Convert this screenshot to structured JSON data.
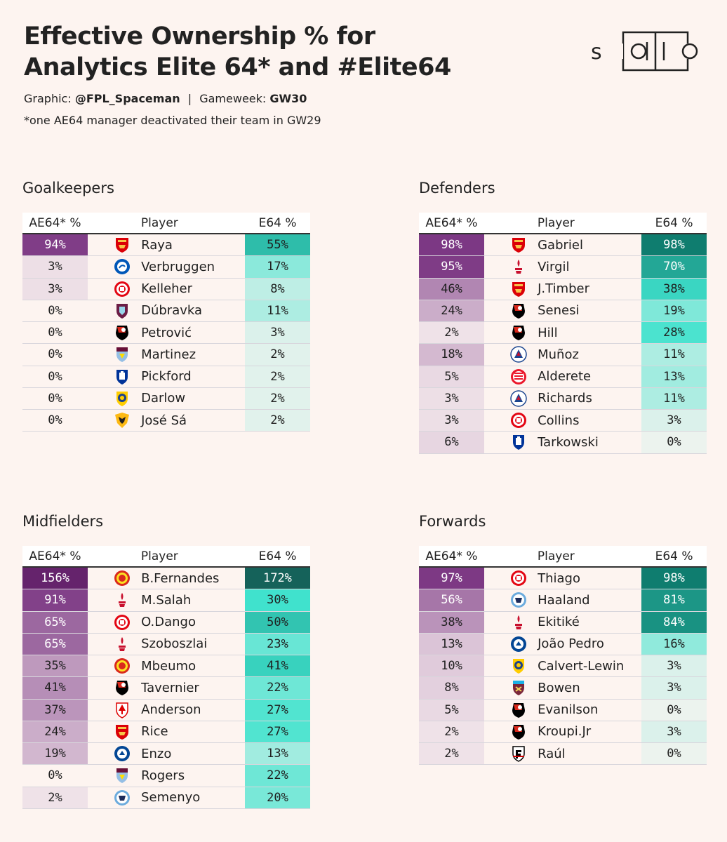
{
  "header": {
    "title_line1": "Effective Ownership % for",
    "title_line2": "Analytics Elite 64* and #Elite64",
    "graphic_label": "Graphic:",
    "graphic_author": "@FPL_Spaceman",
    "separator": "|",
    "gameweek_label": "Gameweek:",
    "gameweek_value": "GW30",
    "note": "*one AE64 manager deactivated their team in GW29",
    "logo_text": "solio"
  },
  "columns": {
    "ae64": "AE64* %",
    "player": "Player",
    "e64": "E64 %"
  },
  "colors": {
    "background": "#fdf4f0",
    "purple_max": "#6d2b78",
    "teal_max": "#0e7a6c"
  },
  "sections": {
    "goalkeepers": {
      "title": "Goalkeepers",
      "rows": [
        {
          "ae": "94%",
          "ae_v": 94,
          "player": "Raya",
          "e64": "55%",
          "e_v": 55,
          "club": "arsenal"
        },
        {
          "ae": "3%",
          "ae_v": 3,
          "player": "Verbruggen",
          "e64": "17%",
          "e_v": 17,
          "club": "brighton"
        },
        {
          "ae": "3%",
          "ae_v": 3,
          "player": "Kelleher",
          "e64": "8%",
          "e_v": 8,
          "club": "brentford"
        },
        {
          "ae": "0%",
          "ae_v": 0,
          "player": "Dúbravka",
          "e64": "11%",
          "e_v": 11,
          "club": "burnley"
        },
        {
          "ae": "0%",
          "ae_v": 0,
          "player": "Petrović",
          "e64": "3%",
          "e_v": 3,
          "club": "bournemouth"
        },
        {
          "ae": "0%",
          "ae_v": 0,
          "player": "Martinez",
          "e64": "2%",
          "e_v": 2,
          "club": "villa"
        },
        {
          "ae": "0%",
          "ae_v": 0,
          "player": "Pickford",
          "e64": "2%",
          "e_v": 2,
          "club": "everton"
        },
        {
          "ae": "0%",
          "ae_v": 0,
          "player": "Darlow",
          "e64": "2%",
          "e_v": 2,
          "club": "leeds"
        },
        {
          "ae": "0%",
          "ae_v": 0,
          "player": "José Sá",
          "e64": "2%",
          "e_v": 2,
          "club": "wolves"
        }
      ]
    },
    "defenders": {
      "title": "Defenders",
      "rows": [
        {
          "ae": "98%",
          "ae_v": 98,
          "player": "Gabriel",
          "e64": "98%",
          "e_v": 98,
          "club": "arsenal"
        },
        {
          "ae": "95%",
          "ae_v": 95,
          "player": "Virgil",
          "e64": "70%",
          "e_v": 70,
          "club": "liverpool"
        },
        {
          "ae": "46%",
          "ae_v": 46,
          "player": "J.Timber",
          "e64": "38%",
          "e_v": 38,
          "club": "arsenal"
        },
        {
          "ae": "24%",
          "ae_v": 24,
          "player": "Senesi",
          "e64": "19%",
          "e_v": 19,
          "club": "bournemouth"
        },
        {
          "ae": "2%",
          "ae_v": 2,
          "player": "Hill",
          "e64": "28%",
          "e_v": 28,
          "club": "bournemouth"
        },
        {
          "ae": "18%",
          "ae_v": 18,
          "player": "Muñoz",
          "e64": "11%",
          "e_v": 11,
          "club": "palace"
        },
        {
          "ae": "5%",
          "ae_v": 5,
          "player": "Alderete",
          "e64": "13%",
          "e_v": 13,
          "club": "sunderland"
        },
        {
          "ae": "3%",
          "ae_v": 3,
          "player": "Richards",
          "e64": "11%",
          "e_v": 11,
          "club": "palace"
        },
        {
          "ae": "3%",
          "ae_v": 3,
          "player": "Collins",
          "e64": "3%",
          "e_v": 3,
          "club": "brentford"
        },
        {
          "ae": "6%",
          "ae_v": 6,
          "player": "Tarkowski",
          "e64": "0%",
          "e_v": 0,
          "club": "everton"
        }
      ]
    },
    "midfielders": {
      "title": "Midfielders",
      "rows": [
        {
          "ae": "156%",
          "ae_v": 156,
          "player": "B.Fernandes",
          "e64": "172%",
          "e_v": 172,
          "club": "manutd"
        },
        {
          "ae": "91%",
          "ae_v": 91,
          "player": "M.Salah",
          "e64": "30%",
          "e_v": 30,
          "club": "liverpool"
        },
        {
          "ae": "65%",
          "ae_v": 65,
          "player": "O.Dango",
          "e64": "50%",
          "e_v": 50,
          "club": "brentford"
        },
        {
          "ae": "65%",
          "ae_v": 65,
          "player": "Szoboszlai",
          "e64": "23%",
          "e_v": 23,
          "club": "liverpool"
        },
        {
          "ae": "35%",
          "ae_v": 35,
          "player": "Mbeumo",
          "e64": "41%",
          "e_v": 41,
          "club": "manutd"
        },
        {
          "ae": "41%",
          "ae_v": 41,
          "player": "Tavernier",
          "e64": "22%",
          "e_v": 22,
          "club": "bournemouth"
        },
        {
          "ae": "37%",
          "ae_v": 37,
          "player": "Anderson",
          "e64": "27%",
          "e_v": 27,
          "club": "forest"
        },
        {
          "ae": "24%",
          "ae_v": 24,
          "player": "Rice",
          "e64": "27%",
          "e_v": 27,
          "club": "arsenal"
        },
        {
          "ae": "19%",
          "ae_v": 19,
          "player": "Enzo",
          "e64": "13%",
          "e_v": 13,
          "club": "chelsea"
        },
        {
          "ae": "0%",
          "ae_v": 0,
          "player": "Rogers",
          "e64": "22%",
          "e_v": 22,
          "club": "villa"
        },
        {
          "ae": "2%",
          "ae_v": 2,
          "player": "Semenyo",
          "e64": "20%",
          "e_v": 20,
          "club": "mancity"
        }
      ]
    },
    "forwards": {
      "title": "Forwards",
      "rows": [
        {
          "ae": "97%",
          "ae_v": 97,
          "player": "Thiago",
          "e64": "98%",
          "e_v": 98,
          "club": "brentford"
        },
        {
          "ae": "56%",
          "ae_v": 56,
          "player": "Haaland",
          "e64": "81%",
          "e_v": 81,
          "club": "mancity"
        },
        {
          "ae": "38%",
          "ae_v": 38,
          "player": "Ekitiké",
          "e64": "84%",
          "e_v": 84,
          "club": "liverpool"
        },
        {
          "ae": "13%",
          "ae_v": 13,
          "player": "João Pedro",
          "e64": "16%",
          "e_v": 16,
          "club": "chelsea"
        },
        {
          "ae": "10%",
          "ae_v": 10,
          "player": "Calvert-Lewin",
          "e64": "3%",
          "e_v": 3,
          "club": "leeds"
        },
        {
          "ae": "8%",
          "ae_v": 8,
          "player": "Bowen",
          "e64": "3%",
          "e_v": 3,
          "club": "westham"
        },
        {
          "ae": "5%",
          "ae_v": 5,
          "player": "Evanilson",
          "e64": "0%",
          "e_v": 0,
          "club": "bournemouth"
        },
        {
          "ae": "2%",
          "ae_v": 2,
          "player": "Kroupi.Jr",
          "e64": "3%",
          "e_v": 3,
          "club": "bournemouth"
        },
        {
          "ae": "2%",
          "ae_v": 2,
          "player": "Raúl",
          "e64": "0%",
          "e_v": 0,
          "club": "fulham"
        }
      ]
    }
  }
}
